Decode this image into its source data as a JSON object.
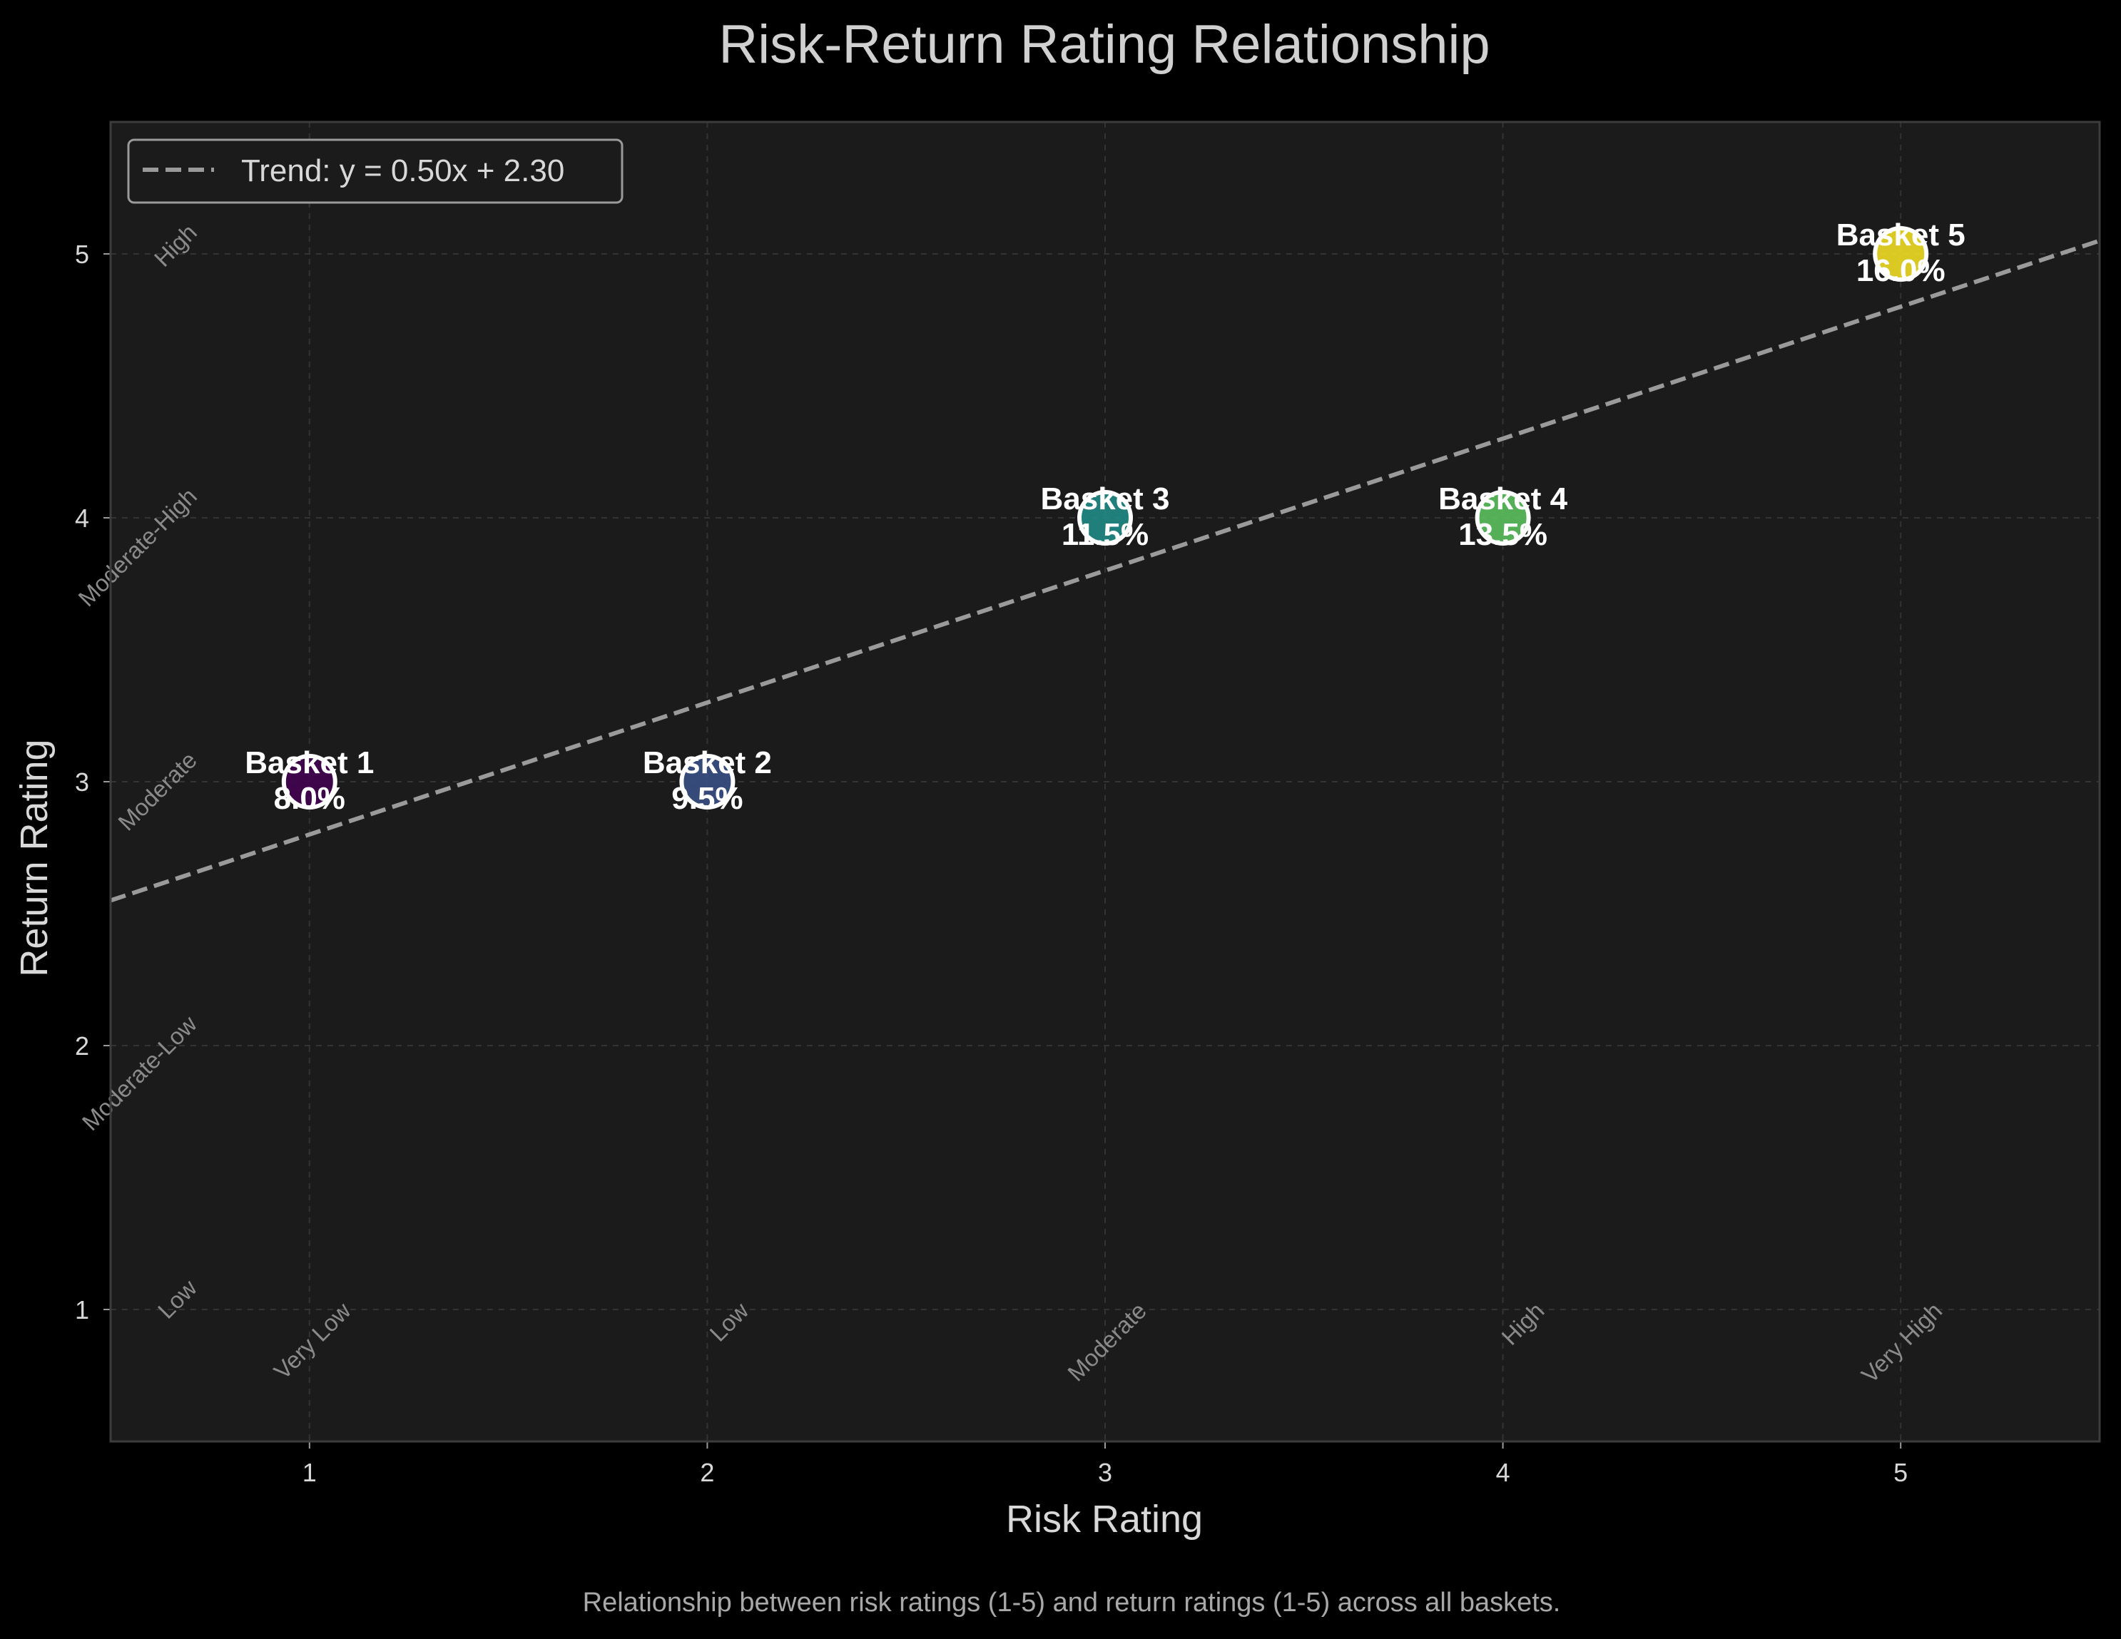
{
  "chart_data": {
    "type": "scatter",
    "title": "Risk-Return Rating Relationship",
    "xlabel": "Risk Rating",
    "ylabel": "Return Rating",
    "caption": "Relationship between risk ratings (1-5) and return ratings (1-5) across all baskets.",
    "xlim": [
      0.5,
      5.5
    ],
    "ylim": [
      0.5,
      5.5
    ],
    "x_ticks": [
      "1",
      "2",
      "3",
      "4",
      "5"
    ],
    "y_ticks": [
      "1",
      "2",
      "3",
      "4",
      "5"
    ],
    "grid": true,
    "legend": {
      "placement": "top-left",
      "entries": [
        "Trend: y = 0.50x + 2.30"
      ]
    },
    "trend": {
      "label": "Trend: y = 0.50x + 2.30",
      "slope": 0.5,
      "intercept": 2.3,
      "color": "#9a9a9a"
    },
    "points": [
      {
        "name": "Basket 1",
        "x": 1,
        "y": 3,
        "value_label": "8.0%",
        "color": "#440154"
      },
      {
        "name": "Basket 2",
        "x": 2,
        "y": 3,
        "value_label": "9.5%",
        "color": "#3b528b"
      },
      {
        "name": "Basket 3",
        "x": 3,
        "y": 4,
        "value_label": "11.5%",
        "color": "#21918c"
      },
      {
        "name": "Basket 4",
        "x": 4,
        "y": 4,
        "value_label": "13.5%",
        "color": "#5ec962"
      },
      {
        "name": "Basket 5",
        "x": 5,
        "y": 5,
        "value_label": "16.0%",
        "color": "#fde725"
      }
    ],
    "x_category_labels": [
      {
        "x": 1,
        "text": "Very Low"
      },
      {
        "x": 2,
        "text": "Low"
      },
      {
        "x": 3,
        "text": "Moderate"
      },
      {
        "x": 4,
        "text": "High"
      },
      {
        "x": 5,
        "text": "Very High"
      }
    ],
    "y_category_labels": [
      {
        "y": 1,
        "text": "Low"
      },
      {
        "y": 2,
        "text": "Moderate-Low"
      },
      {
        "y": 3,
        "text": "Moderate"
      },
      {
        "y": 4,
        "text": "Moderate-High"
      },
      {
        "y": 5,
        "text": "High"
      }
    ],
    "colors": {
      "background": "#000000",
      "plot_background": "#1b1b1b",
      "frame": "#3c3c3c",
      "grid": "#333333",
      "marker_edge": "#ffffff"
    }
  }
}
